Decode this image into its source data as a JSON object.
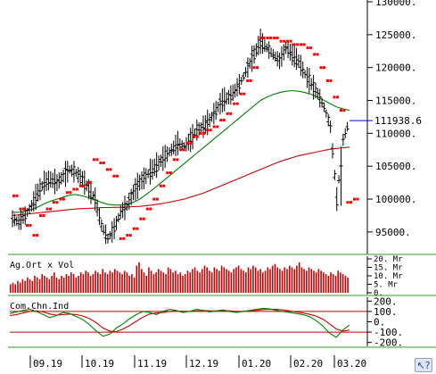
{
  "chart_data": [
    {
      "type": "ohlc-bar",
      "panel": "price",
      "ylim": [
        92000,
        130000
      ],
      "y_ticks": [
        "130000.",
        "125000.",
        "120000.",
        "115000.",
        "110000.",
        "105000.",
        "100000.",
        "95000."
      ],
      "last_value_label": "111938.6",
      "x_ticks": [
        "09.19",
        "10.19",
        "11.19",
        "12.19",
        "01.20",
        "02.20",
        "03.20"
      ],
      "colors": {
        "bars": "#000000",
        "sar": "#ff0000",
        "ma_short": "#008000",
        "ma_long": "#cc0000",
        "last_value_line": "#0000cc"
      },
      "price_path": [
        97000,
        96500,
        97500,
        99000,
        101000,
        102500,
        103000,
        102500,
        103500,
        104500,
        104000,
        103000,
        101500,
        100000,
        96000,
        94000,
        95500,
        98000,
        99000,
        101000,
        102500,
        103500,
        104500,
        105500,
        106500,
        107500,
        108500,
        108000,
        109000,
        110500,
        111000,
        112000,
        113500,
        115000,
        115500,
        116500,
        118000,
        120000,
        122000,
        124000,
        123000,
        122000,
        121000,
        123000,
        122000,
        121000,
        119000,
        117500,
        116000,
        114000,
        111000,
        100000,
        109000,
        112000
      ],
      "sar": [
        {
          "x": 0,
          "y": 100500
        },
        {
          "x": 1,
          "y": 98500
        },
        {
          "x": 2,
          "y": 96000
        },
        {
          "x": 3,
          "y": 94500
        },
        {
          "x": 4,
          "y": 97500
        },
        {
          "x": 5,
          "y": 98500
        },
        {
          "x": 6,
          "y": 99500
        },
        {
          "x": 7,
          "y": 100000
        },
        {
          "x": 8,
          "y": 101000
        },
        {
          "x": 9,
          "y": 101500
        },
        {
          "x": 10,
          "y": 102000
        },
        {
          "x": 11,
          "y": 102500
        },
        {
          "x": 12,
          "y": 106000
        },
        {
          "x": 13,
          "y": 105500
        },
        {
          "x": 14,
          "y": 104500
        },
        {
          "x": 15,
          "y": 103500
        },
        {
          "x": 16,
          "y": 94000
        },
        {
          "x": 17,
          "y": 94500
        },
        {
          "x": 18,
          "y": 95500
        },
        {
          "x": 19,
          "y": 97000
        },
        {
          "x": 20,
          "y": 98500
        },
        {
          "x": 21,
          "y": 100000
        },
        {
          "x": 22,
          "y": 102000
        },
        {
          "x": 23,
          "y": 104000
        },
        {
          "x": 24,
          "y": 106000
        },
        {
          "x": 25,
          "y": 107500
        },
        {
          "x": 26,
          "y": 108500
        },
        {
          "x": 27,
          "y": 109500
        },
        {
          "x": 28,
          "y": 110000
        },
        {
          "x": 29,
          "y": 110500
        },
        {
          "x": 30,
          "y": 111000
        },
        {
          "x": 31,
          "y": 112000
        },
        {
          "x": 32,
          "y": 113000
        },
        {
          "x": 33,
          "y": 114500
        },
        {
          "x": 34,
          "y": 116000
        },
        {
          "x": 35,
          "y": 118000
        },
        {
          "x": 36,
          "y": 120000
        },
        {
          "x": 37,
          "y": 124500
        },
        {
          "x": 38,
          "y": 124500
        },
        {
          "x": 39,
          "y": 124500
        },
        {
          "x": 40,
          "y": 124000
        },
        {
          "x": 41,
          "y": 124000
        },
        {
          "x": 42,
          "y": 123500
        },
        {
          "x": 43,
          "y": 123500
        },
        {
          "x": 44,
          "y": 123000
        },
        {
          "x": 45,
          "y": 122000
        },
        {
          "x": 46,
          "y": 120000
        },
        {
          "x": 47,
          "y": 118000
        },
        {
          "x": 48,
          "y": 115500
        },
        {
          "x": 49,
          "y": 113500
        },
        {
          "x": 50,
          "y": 99500
        },
        {
          "x": 51,
          "y": 100000
        }
      ],
      "series": [
        {
          "key": "ma_short",
          "values": [
            98000,
            98000,
            98200,
            98400,
            98800,
            99300,
            99700,
            100000,
            100300,
            100600,
            100700,
            100500,
            100200,
            99900,
            99500,
            99200,
            99100,
            99100,
            99200,
            99500,
            100000,
            100700,
            101400,
            102200,
            103000,
            103800,
            104600,
            105400,
            106200,
            107000,
            107800,
            108600,
            109400,
            110200,
            111000,
            111800,
            112600,
            113400,
            114200,
            115000,
            115500,
            115900,
            116200,
            116400,
            116500,
            116400,
            116200,
            115900,
            115500,
            115000,
            114500,
            114000,
            113700,
            113500
          ]
        },
        {
          "key": "ma_long",
          "values": [
            97500,
            97600,
            97700,
            97800,
            97900,
            98000,
            98100,
            98200,
            98300,
            98400,
            98500,
            98550,
            98600,
            98650,
            98700,
            98720,
            98740,
            98760,
            98800,
            98850,
            98900,
            99000,
            99100,
            99250,
            99400,
            99600,
            99800,
            100000,
            100300,
            100600,
            100900,
            101300,
            101700,
            102100,
            102500,
            102900,
            103300,
            103700,
            104100,
            104500,
            104900,
            105300,
            105700,
            106000,
            106300,
            106600,
            106800,
            107000,
            107200,
            107400,
            107600,
            107700,
            107800,
            107900
          ]
        }
      ]
    },
    {
      "type": "bar",
      "panel": "volume",
      "title": "Ag.Ort x Vol",
      "y_ticks": [
        "20. Mr",
        "15. Mr",
        "10. Mr",
        "5. Mr",
        "0."
      ],
      "ylim": [
        0,
        20
      ],
      "values": [
        5,
        6,
        5,
        7,
        6,
        8,
        7,
        9,
        8,
        7,
        10,
        9,
        8,
        11,
        10,
        9,
        8,
        10,
        12,
        9,
        8,
        10,
        9,
        11,
        10,
        12,
        11,
        9,
        10,
        12,
        11,
        13,
        12,
        10,
        11,
        13,
        12,
        11,
        14,
        12,
        11,
        13,
        12,
        14,
        13,
        12,
        11,
        13,
        12,
        10,
        11,
        9,
        16,
        18,
        14,
        12,
        10,
        15,
        13,
        11,
        12,
        14,
        13,
        12,
        11,
        15,
        14,
        12,
        13,
        11,
        12,
        10,
        11,
        13,
        12,
        14,
        15,
        13,
        12,
        14,
        16,
        15,
        13,
        12,
        15,
        14,
        13,
        16,
        15,
        14,
        13,
        12,
        14,
        15,
        16,
        14,
        13,
        12,
        15,
        14,
        16,
        15,
        13,
        14,
        12,
        13,
        15,
        14,
        16,
        17,
        15,
        14,
        13,
        15,
        14,
        16,
        15,
        14,
        16,
        18,
        15,
        14,
        13,
        15,
        14,
        13,
        12,
        14,
        13,
        12,
        11,
        10,
        12,
        11,
        10,
        13,
        12,
        11,
        10,
        9
      ],
      "colors": {
        "bars": "#cc0000"
      }
    },
    {
      "type": "line",
      "panel": "cci",
      "title": "Com.Chn.Ind",
      "y_ticks": [
        "200.",
        "100.",
        "0.",
        "-100.",
        "-200."
      ],
      "ylim": [
        -220,
        220
      ],
      "reference_lines": [
        100,
        -100
      ],
      "series": [
        {
          "key": "cci",
          "values": [
            80,
            95,
            110,
            120,
            100,
            70,
            40,
            60,
            90,
            80,
            50,
            20,
            -30,
            -90,
            -140,
            -120,
            -60,
            -20,
            30,
            70,
            100,
            90,
            70,
            100,
            120,
            110,
            90,
            100,
            120,
            110,
            95,
            105,
            115,
            100,
            90,
            100,
            110,
            120,
            130,
            125,
            110,
            100,
            90,
            80,
            70,
            50,
            10,
            -40,
            -110,
            -150,
            -80,
            -30
          ]
        },
        {
          "key": "cci_signal",
          "values": [
            60,
            70,
            85,
            100,
            105,
            95,
            75,
            65,
            70,
            75,
            70,
            55,
            30,
            -10,
            -60,
            -90,
            -95,
            -70,
            -35,
            5,
            45,
            75,
            85,
            90,
            100,
            105,
            100,
            100,
            105,
            110,
            105,
            105,
            108,
            105,
            100,
            100,
            103,
            110,
            118,
            122,
            120,
            115,
            105,
            95,
            85,
            72,
            55,
            25,
            -20,
            -70,
            -90,
            -80
          ]
        }
      ],
      "colors": {
        "cci": "#008000",
        "cci_signal": "#cc0000",
        "reference": "#cc0000"
      }
    }
  ],
  "help_icon": "cursor-help-icon"
}
